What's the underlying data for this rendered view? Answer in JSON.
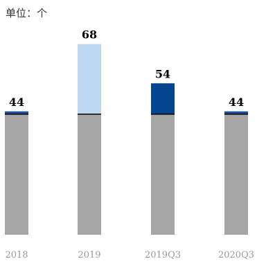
{
  "unit_label": "单位：个",
  "chart_data": {
    "type": "bar",
    "categories": [
      "2018",
      "2019",
      "2019Q3",
      "2020Q3"
    ],
    "base_values": [
      43,
      43,
      43,
      43
    ],
    "values": [
      44,
      68,
      54,
      44
    ],
    "data_labels": [
      "44",
      "68",
      "54",
      "44"
    ],
    "ylim": [
      0,
      75
    ],
    "grid": false,
    "legend": "none",
    "colors": {
      "base": "#a6a6a6",
      "increment": [
        "#1f4e9c",
        "#bdd7ee",
        "#03458f",
        "#1f4e9c"
      ],
      "base_line": "#000000",
      "label": "#000000",
      "tick_label": "#999999"
    }
  }
}
